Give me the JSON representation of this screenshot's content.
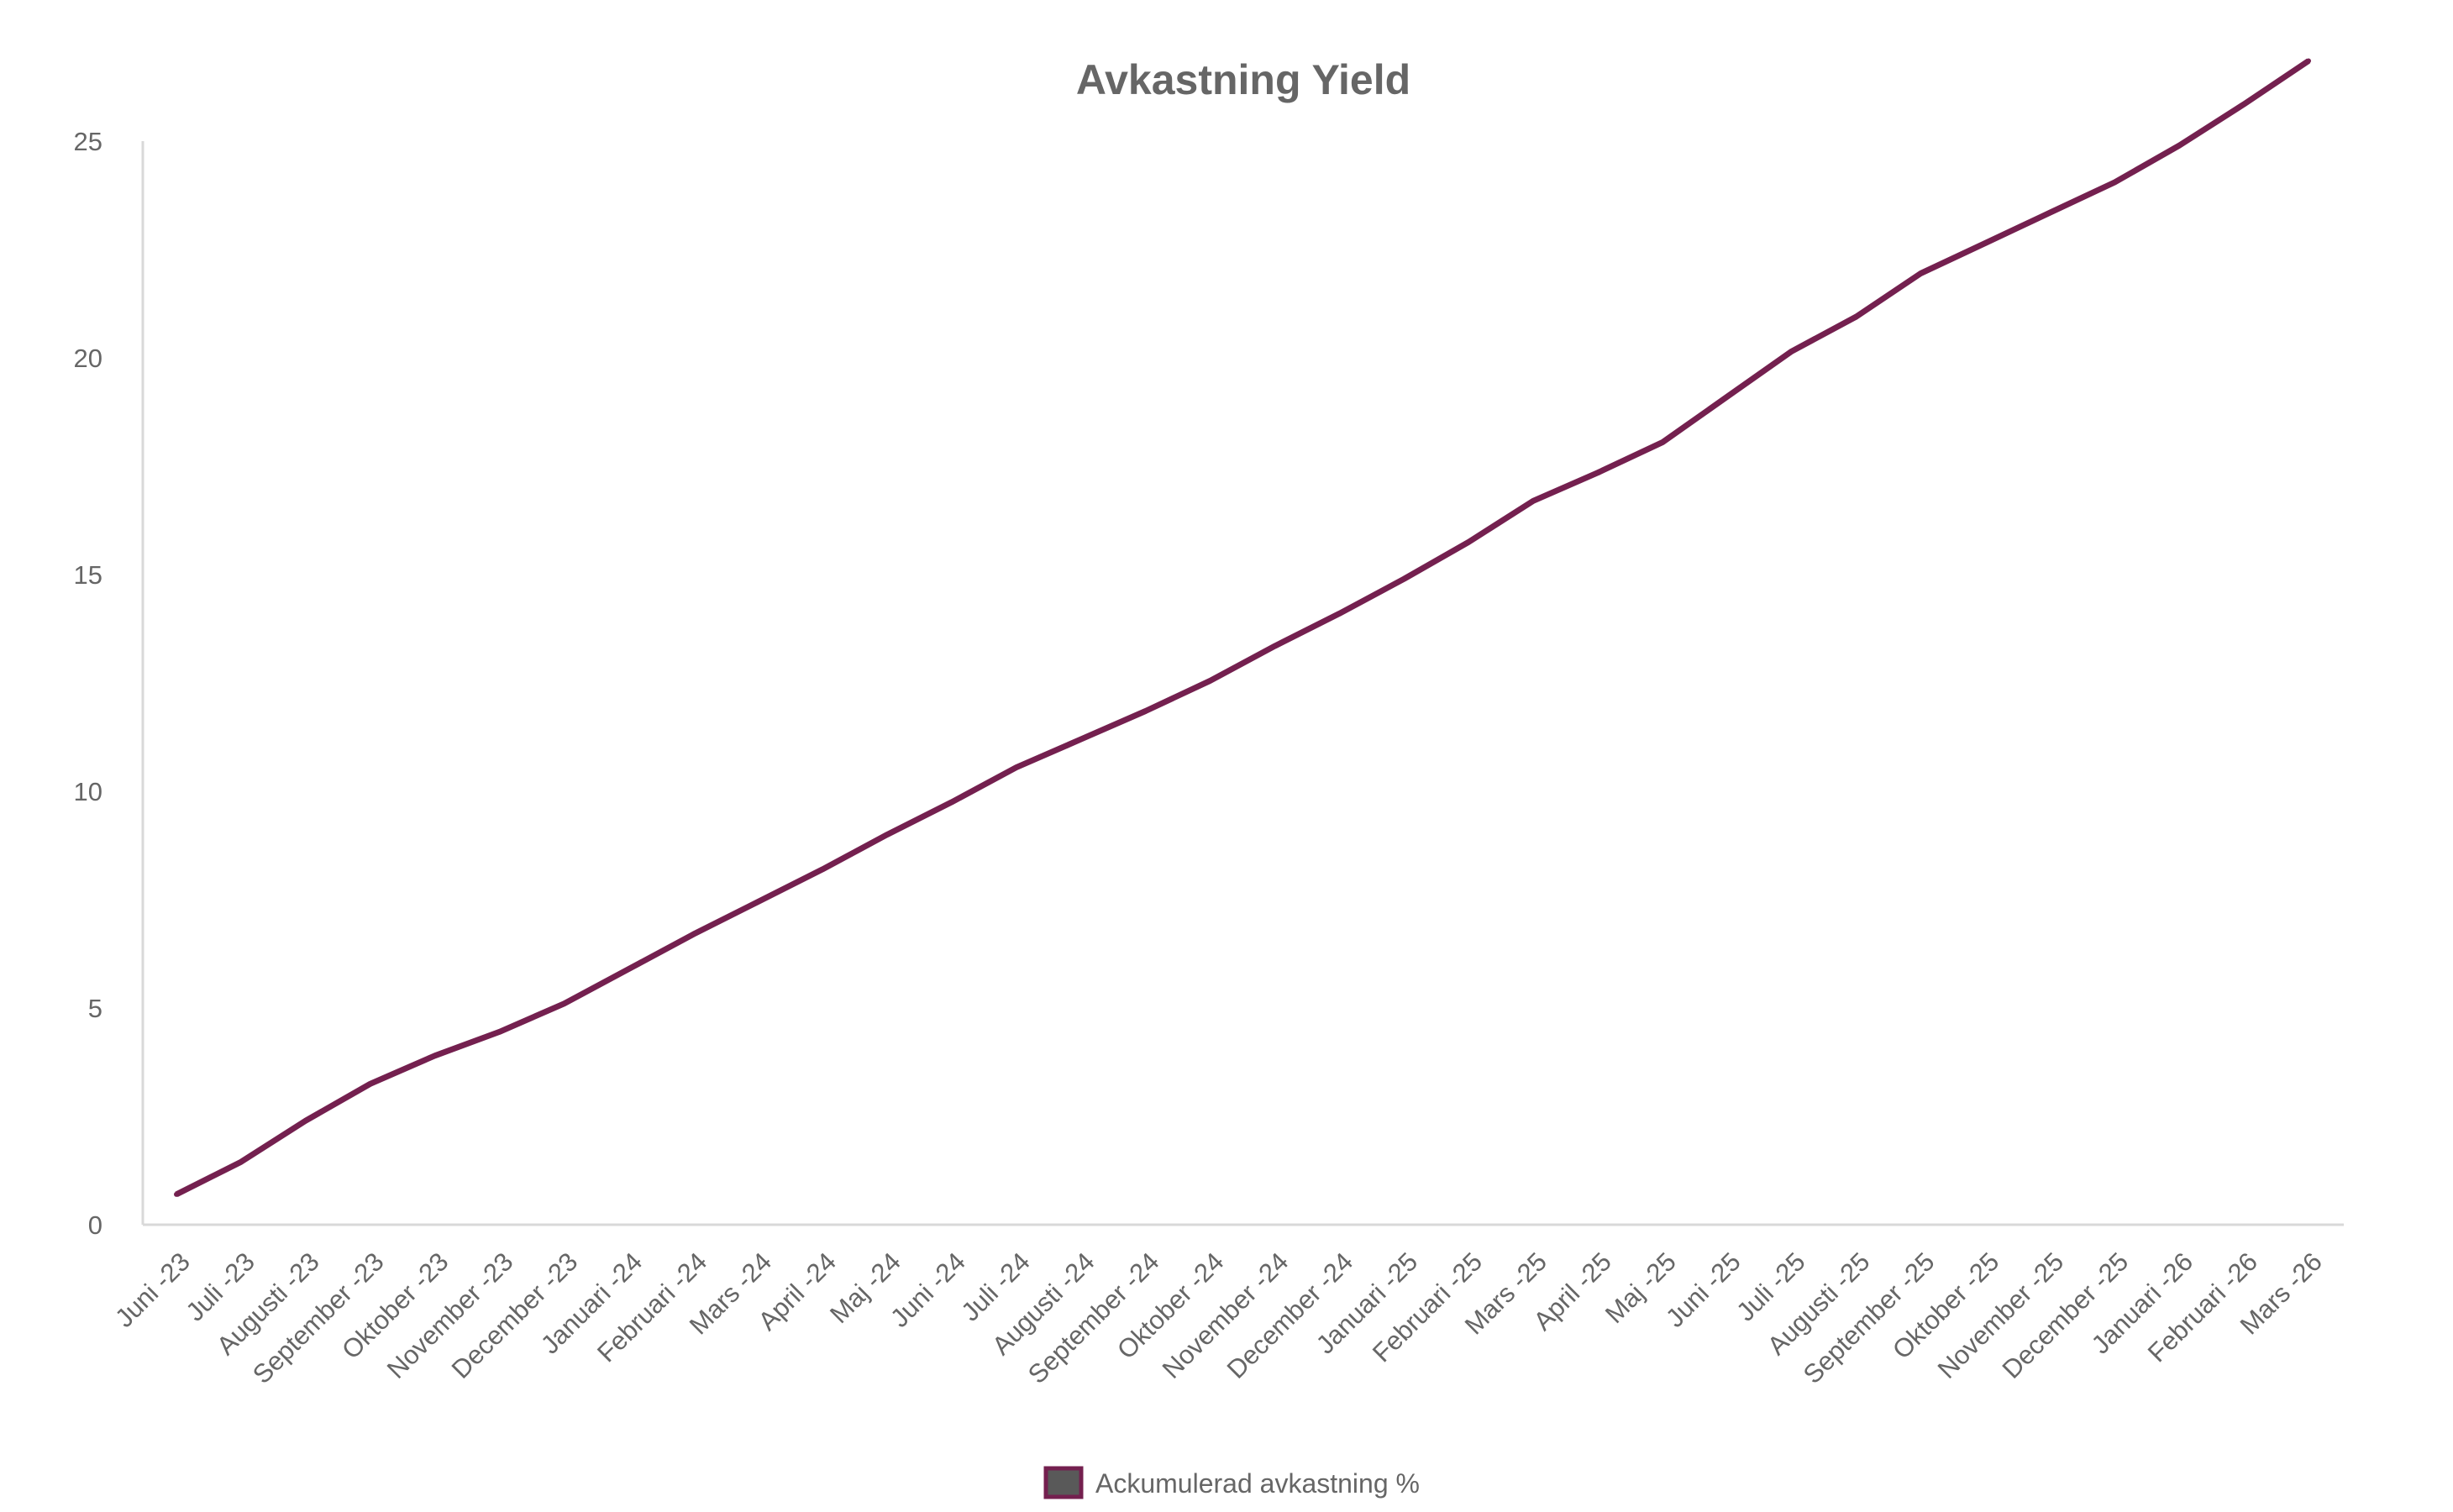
{
  "chart_data": {
    "type": "line",
    "title": "Avkastning Yield",
    "xlabel": "",
    "ylabel": "",
    "ylim": [
      0,
      25
    ],
    "yticks": [
      0,
      5,
      10,
      15,
      20,
      25
    ],
    "grid": false,
    "legend_position": "bottom",
    "categories": [
      "Juni -23",
      "Juli -23",
      "Augusti -23",
      "September -23",
      "Oktober -23",
      "November -23",
      "December -23",
      "Januari -24",
      "Februari -24",
      "Mars -24",
      "April -24",
      "Maj -24",
      "Juni -24",
      "Juli -24",
      "Augusti -24",
      "September -24",
      "Oktober -24",
      "November -24",
      "December -24",
      "Januari -25",
      "Februari -25",
      "Mars -25",
      "April -25",
      "Maj -25",
      "Juni -25",
      "Juli -25",
      "Augusti -25",
      "September -25",
      "Oktober -25",
      "November -25",
      "December -25",
      "Januari -26",
      "Februari -26",
      "Mars -26"
    ],
    "series": [
      {
        "name": "Ackumulerad avkastning %",
        "color": "#74204f",
        "values": [
          0.7,
          1.45,
          2.4,
          3.25,
          3.9,
          4.45,
          5.1,
          5.9,
          6.7,
          7.45,
          8.2,
          9.0,
          9.75,
          10.55,
          11.2,
          11.85,
          12.55,
          13.35,
          14.1,
          14.9,
          15.75,
          16.7,
          17.35,
          18.05,
          19.1,
          20.15,
          20.95,
          21.95,
          22.65,
          23.35,
          24.05,
          24.9,
          25.85,
          26.85
        ]
      }
    ],
    "colors": {
      "line": "#74204f",
      "axis": "#d9d9d9",
      "text": "#666666",
      "legend_fill": "#595959"
    }
  }
}
